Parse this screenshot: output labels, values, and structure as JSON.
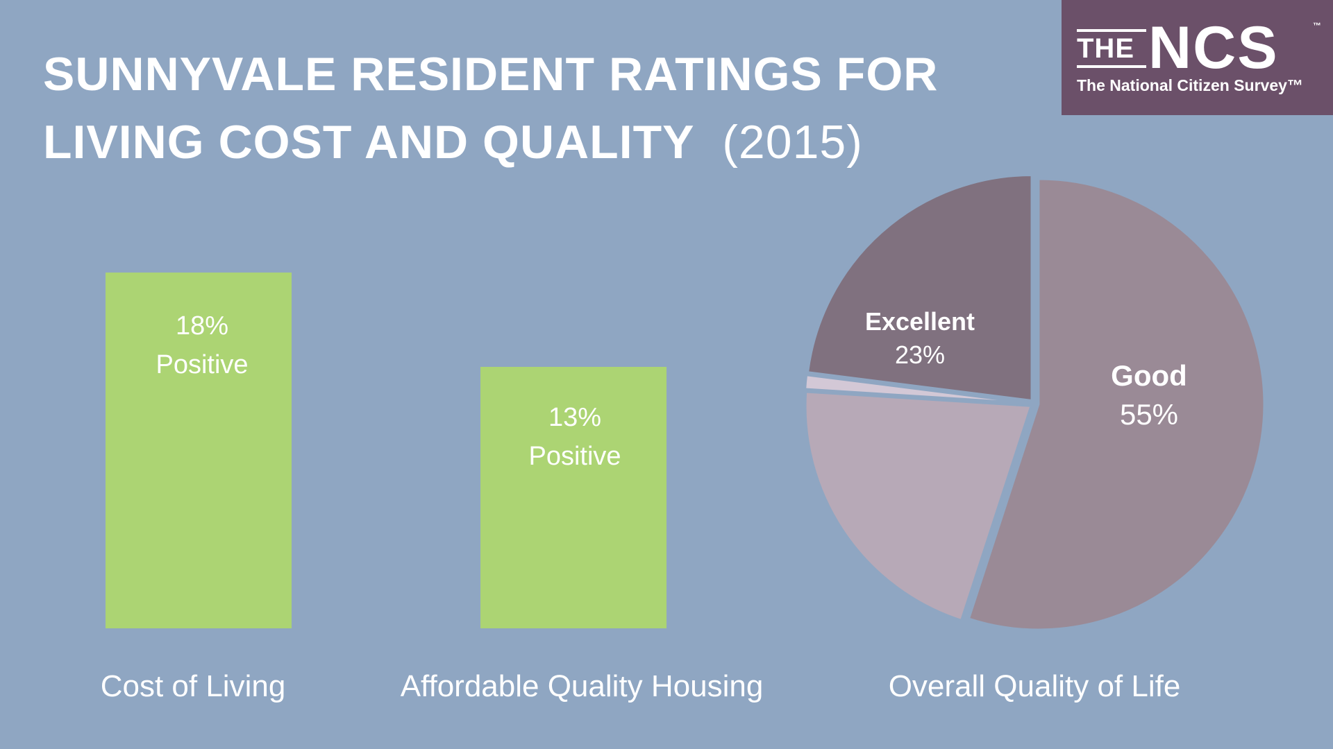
{
  "header": {
    "title_line1": "SUNNYVALE RESIDENT RATINGS FOR",
    "title_line2": "LIVING COST AND QUALITY",
    "title_year": "(2015)"
  },
  "logo": {
    "the": "THE",
    "ncs": "NCS",
    "tm": "™",
    "subtitle": "The National Citizen Survey™"
  },
  "colors": {
    "background": "#8fa6c2",
    "bar": "#acd473",
    "logo_bg": "#6b5069"
  },
  "chart_data": [
    {
      "type": "bar",
      "categories": [
        "Cost of Living",
        "Affordable Quality Housing"
      ],
      "values": [
        18,
        13
      ],
      "data_labels": [
        {
          "value": "18%",
          "text": "Positive"
        },
        {
          "value": "13%",
          "text": "Positive"
        }
      ],
      "unit": "%",
      "ylim": [
        0,
        23.5
      ],
      "grid": false
    },
    {
      "type": "pie",
      "category_label": "Overall Quality of Life",
      "slices": [
        {
          "name": "Good",
          "label": "55%",
          "value": 55,
          "color": "#9a8a96"
        },
        {
          "name": "",
          "label": "",
          "value": 21,
          "color": "#b7a9b7"
        },
        {
          "name": "",
          "label": "",
          "value": 1,
          "color": "#d3c8d6"
        },
        {
          "name": "Excellent",
          "label": "23%",
          "value": 23,
          "color": "#80717f"
        }
      ]
    }
  ]
}
